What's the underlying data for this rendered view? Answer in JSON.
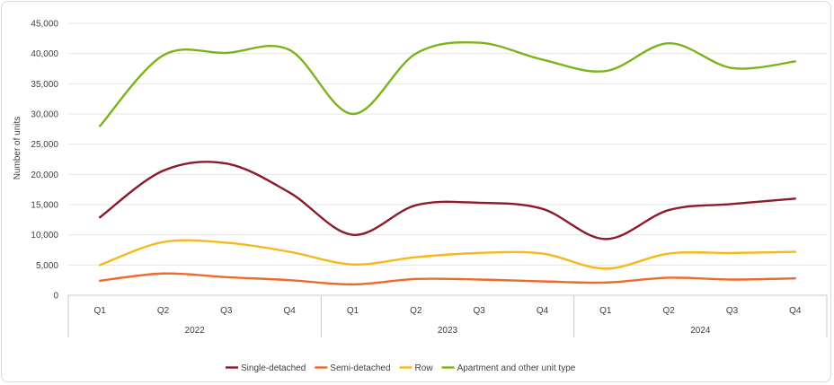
{
  "chart_data": {
    "type": "line",
    "title": "",
    "xlabel": "",
    "ylabel": "Number of units",
    "ylim": [
      0,
      45000
    ],
    "yticks": [
      0,
      5000,
      10000,
      15000,
      20000,
      25000,
      30000,
      35000,
      40000,
      45000
    ],
    "ytick_labels": [
      "0",
      "5,000",
      "10,000",
      "15,000",
      "20,000",
      "25,000",
      "30,000",
      "35,000",
      "40,000",
      "45,000"
    ],
    "grid": true,
    "legend_position": "bottom",
    "categories": [
      "Q1",
      "Q2",
      "Q3",
      "Q4",
      "Q1",
      "Q2",
      "Q3",
      "Q4",
      "Q1",
      "Q2",
      "Q3",
      "Q4"
    ],
    "groups": [
      {
        "label": "2022",
        "count": 4
      },
      {
        "label": "2023",
        "count": 4
      },
      {
        "label": "2024",
        "count": 4
      }
    ],
    "series": [
      {
        "name": "Single-detached",
        "color": "#8b1a2c",
        "values": [
          12900,
          20600,
          21800,
          17000,
          10000,
          14900,
          15300,
          14300,
          9300,
          14100,
          15100,
          16000
        ]
      },
      {
        "name": "Semi-detached",
        "color": "#ed6a2b",
        "values": [
          2400,
          3600,
          3000,
          2500,
          1800,
          2700,
          2600,
          2300,
          2100,
          2900,
          2600,
          2800
        ]
      },
      {
        "name": "Row",
        "color": "#f6b81a",
        "values": [
          5000,
          8800,
          8700,
          7200,
          5100,
          6300,
          7000,
          6900,
          4400,
          6900,
          7000,
          7200
        ]
      },
      {
        "name": "Apartment and other unit type",
        "color": "#7ab41d",
        "values": [
          28000,
          39700,
          40100,
          40600,
          30000,
          40000,
          41800,
          39000,
          37100,
          41700,
          37600,
          38700
        ]
      }
    ]
  }
}
